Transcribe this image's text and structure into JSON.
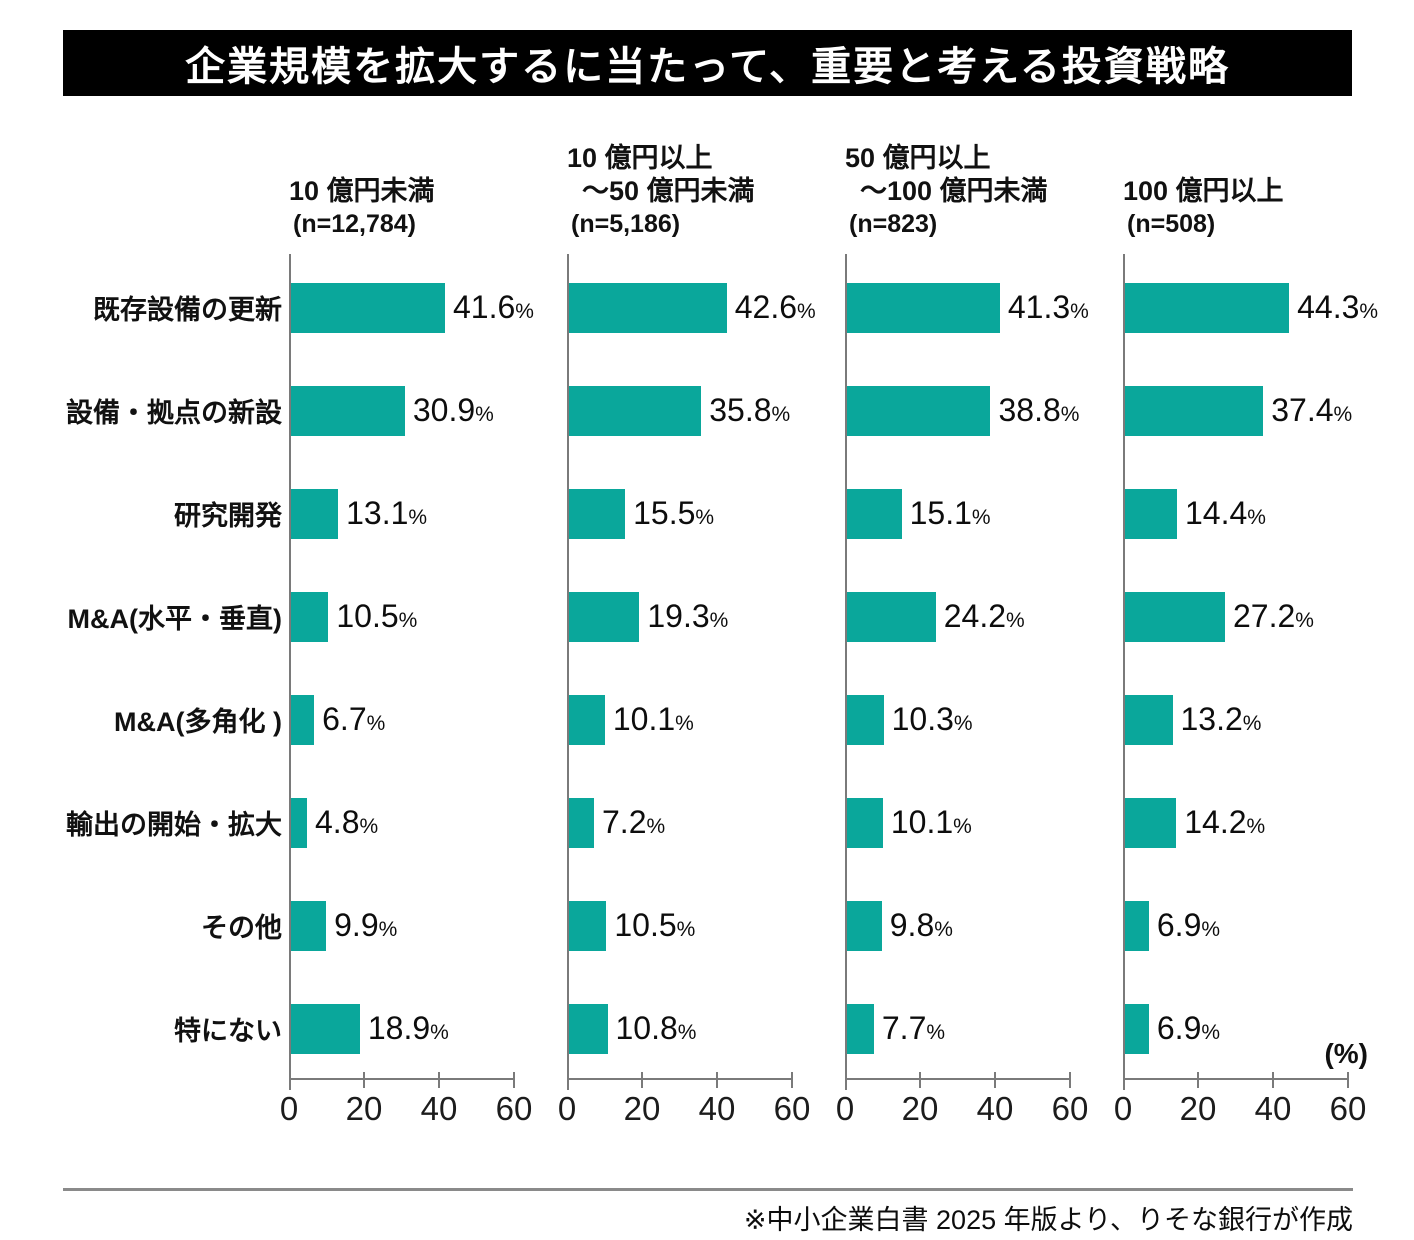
{
  "title": "企業規模を拡大するに当たって、重要と考える投資戦略",
  "footer": "※中小企業白書 2025 年版より、りそな銀行が作成",
  "percent_label": "(%)",
  "chart_data": {
    "type": "bar",
    "orientation": "horizontal",
    "title": "企業規模を拡大するに当たって、重要と考える投資戦略",
    "categories": [
      "既存設備の更新",
      "設備・拠点の新設",
      "研究開発",
      "M&A(水平・垂直)",
      "M&A(多角化 )",
      "輸出の開始・拡大",
      "その他",
      "特にない"
    ],
    "series": [
      {
        "name": "10 億円未満",
        "header_lines": [
          "10 億円未満"
        ],
        "n_label": "(n=12,784)",
        "values": [
          41.6,
          30.9,
          13.1,
          10.5,
          6.7,
          4.8,
          9.9,
          18.9
        ]
      },
      {
        "name": "10 億円以上～50 億円未満",
        "header_lines": [
          "10 億円以上",
          "～50 億円未満"
        ],
        "n_label": "(n=5,186)",
        "values": [
          42.6,
          35.8,
          15.5,
          19.3,
          10.1,
          7.2,
          10.5,
          10.8
        ]
      },
      {
        "name": "50 億円以上～100 億円未満",
        "header_lines": [
          "50 億円以上",
          "～100 億円未満"
        ],
        "n_label": "(n=823)",
        "values": [
          41.3,
          38.8,
          15.1,
          24.2,
          10.3,
          10.1,
          9.8,
          7.7
        ]
      },
      {
        "name": "100 億円以上",
        "header_lines": [
          "100 億円以上"
        ],
        "n_label": "(n=508)",
        "values": [
          44.3,
          37.4,
          14.4,
          27.2,
          13.2,
          14.2,
          6.9,
          6.9
        ]
      }
    ],
    "xlim": [
      0,
      60
    ],
    "xticks": [
      0,
      20,
      40,
      60
    ],
    "value_suffix": "%",
    "bar_color": "#0aa79b",
    "axis_color": "#7a7a7a",
    "legend": "none",
    "grid": false
  }
}
